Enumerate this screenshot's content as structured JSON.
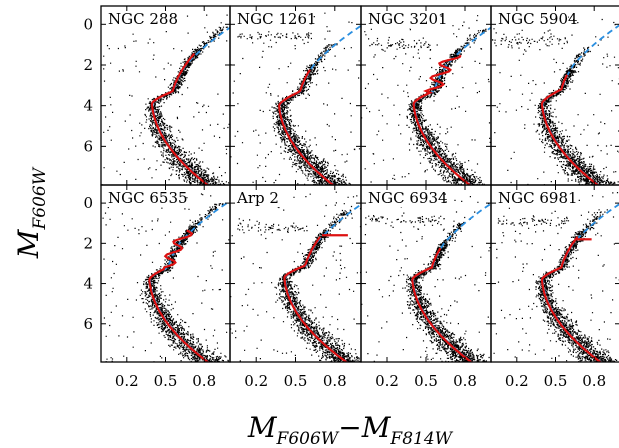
{
  "chart_data": {
    "type": "scatter",
    "layout": "2x4 panel grid of color-magnitude diagrams",
    "xlabel": {
      "main": "M",
      "sub": "F606W",
      "sep": "−",
      "main2": "M",
      "sub2": "F814W"
    },
    "ylabel": {
      "main": "M",
      "sub": "F606W"
    },
    "xlim": [
      0.0,
      1.0
    ],
    "ylim": [
      7.9,
      -0.9
    ],
    "y_inverted": true,
    "xticks": [
      0.2,
      0.5,
      0.8
    ],
    "xtick_labels": [
      "0.2",
      "0.5",
      "0.8"
    ],
    "yticks": [
      0,
      2,
      4,
      6
    ],
    "ytick_labels": [
      "0",
      "2",
      "4",
      "6"
    ],
    "colors": {
      "points": "#000000",
      "fiducial": "#dd1111",
      "isochrone": "#2b8fe0"
    },
    "series_styles": {
      "points": "black dots",
      "fiducial": "red solid line",
      "isochrone": "blue dashed line"
    },
    "panels": [
      {
        "label": "NGC 288",
        "to_x": 0.4,
        "rgb_x": 0.64,
        "to_y": 3.9,
        "sgb_y": 3.3,
        "fid_top": 1.4,
        "hb_y": null,
        "hb_range": null,
        "wiggle": 0.0,
        "spike": null
      },
      {
        "label": "NGC 1261",
        "to_x": 0.38,
        "rgb_x": 0.62,
        "to_y": 4.0,
        "sgb_y": 3.3,
        "fid_top": 2.2,
        "hb_y": 0.6,
        "hb_range": [
          0.05,
          0.62
        ],
        "wiggle": 0.0,
        "spike": null
      },
      {
        "label": "NGC 3201",
        "to_x": 0.41,
        "rgb_x": 0.64,
        "to_y": 3.9,
        "sgb_y": 3.3,
        "fid_top": 1.5,
        "hb_y": 1.0,
        "hb_range": [
          0.05,
          0.55
        ],
        "wiggle": 0.06,
        "spike": null
      },
      {
        "label": "NGC 5904",
        "to_x": 0.4,
        "rgb_x": 0.63,
        "to_y": 3.9,
        "sgb_y": 3.2,
        "fid_top": 2.4,
        "hb_y": 0.8,
        "hb_range": [
          0.0,
          0.6
        ],
        "wiggle": 0.0,
        "spike": null
      },
      {
        "label": "NGC 6535",
        "to_x": 0.38,
        "rgb_x": 0.6,
        "to_y": 3.8,
        "sgb_y": 3.2,
        "fid_top": 1.3,
        "hb_y": null,
        "hb_range": null,
        "wiggle": 0.05,
        "spike": null
      },
      {
        "label": "Arp 2",
        "to_x": 0.42,
        "rgb_x": 0.66,
        "to_y": 3.7,
        "sgb_y": 3.1,
        "fid_top": 1.6,
        "hb_y": 1.2,
        "hb_range": [
          0.05,
          0.6
        ],
        "wiggle": 0.0,
        "spike": {
          "y": 1.6,
          "x_end": 0.9
        }
      },
      {
        "label": "NGC 6934",
        "to_x": 0.4,
        "rgb_x": 0.63,
        "to_y": 3.8,
        "sgb_y": 3.2,
        "fid_top": 2.2,
        "hb_y": 0.8,
        "hb_range": [
          0.05,
          0.62
        ],
        "wiggle": 0.0,
        "spike": null
      },
      {
        "label": "NGC 6981",
        "to_x": 0.4,
        "rgb_x": 0.63,
        "to_y": 3.8,
        "sgb_y": 3.2,
        "fid_top": 1.6,
        "hb_y": 0.9,
        "hb_range": [
          0.05,
          0.6
        ],
        "wiggle": 0.0,
        "spike": {
          "y": 1.8,
          "x_end": 0.78
        }
      }
    ]
  }
}
